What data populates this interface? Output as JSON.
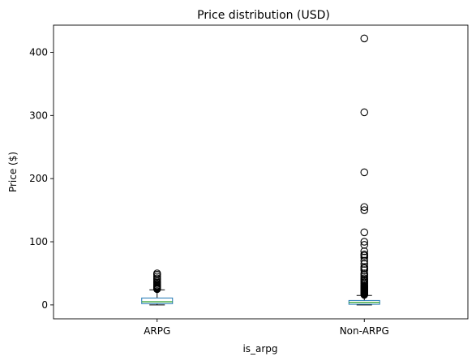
{
  "chart_data": {
    "type": "boxplot",
    "title": "Price distribution (USD)",
    "xlabel": "is_arpg",
    "ylabel": "Price ($)",
    "categories": [
      "ARPG",
      "Non-ARPG"
    ],
    "ylim": [
      -22,
      443
    ],
    "yticks": [
      0,
      100,
      200,
      300,
      400
    ],
    "grid": false,
    "legend": "none",
    "colors": {
      "box": "#1f77b4",
      "median": "#2ca02c",
      "whisker": "#000000",
      "outlier": "#000000"
    },
    "boxes": [
      {
        "category": "ARPG",
        "whislo": 0,
        "q1": 2,
        "med": 5,
        "q3": 11,
        "whishi": 24,
        "outliers": [
          25,
          26,
          27,
          28,
          29,
          30,
          31,
          33,
          35,
          37,
          40,
          42,
          45,
          48,
          50
        ]
      },
      {
        "category": "Non-ARPG",
        "whislo": 0,
        "q1": 1,
        "med": 4,
        "q3": 7,
        "whishi": 15,
        "outliers": [
          16,
          17,
          18,
          19,
          20,
          21,
          22,
          23,
          24,
          25,
          26,
          27,
          28,
          29,
          30,
          32,
          34,
          36,
          38,
          40,
          42,
          45,
          48,
          50,
          55,
          58,
          60,
          65,
          70,
          75,
          78,
          80,
          85,
          95,
          100,
          115,
          150,
          155,
          210,
          305,
          422
        ]
      }
    ]
  }
}
